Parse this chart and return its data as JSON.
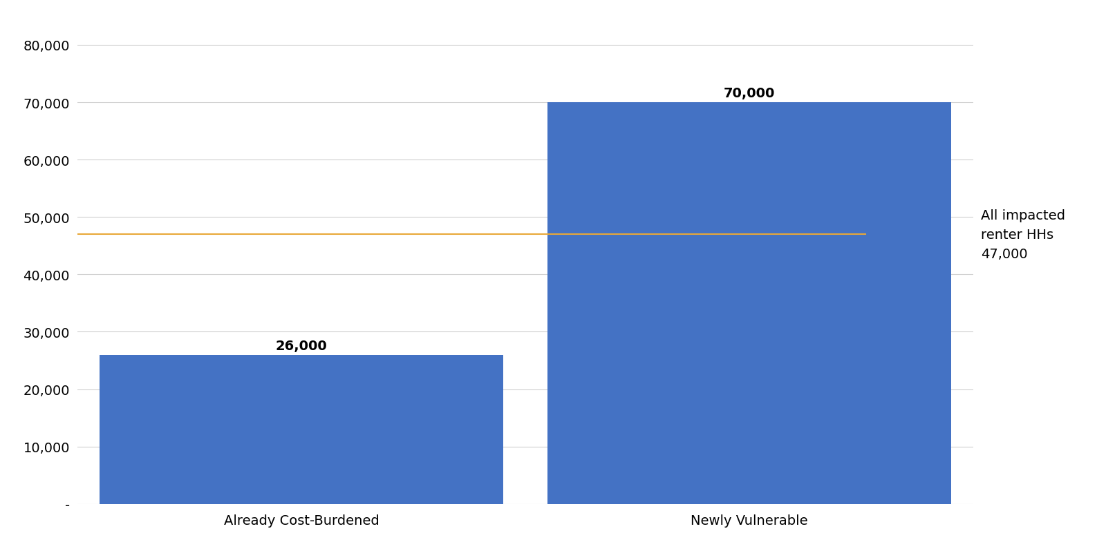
{
  "categories": [
    "Already Cost-Burdened",
    "Newly Vulnerable"
  ],
  "values": [
    26000,
    70000
  ],
  "bar_color": "#4472C4",
  "bar_labels": [
    "26,000",
    "70,000"
  ],
  "hline_value": 47000,
  "hline_color": "#E8A838",
  "hline_label_lines": [
    "All impacted",
    "renter HHs",
    "47,000"
  ],
  "yticks": [
    0,
    10000,
    20000,
    30000,
    40000,
    50000,
    60000,
    70000,
    80000
  ],
  "ytick_labels": [
    "-",
    "10,000",
    "20,000",
    "30,000",
    "40,000",
    "50,000",
    "60,000",
    "70,000",
    "80,000"
  ],
  "ylim": [
    0,
    85000
  ],
  "background_color": "#ffffff",
  "grid_color": "#d0d0d0",
  "bar_width": 0.18,
  "label_fontsize": 14,
  "tick_fontsize": 14,
  "hline_label_fontsize": 14
}
